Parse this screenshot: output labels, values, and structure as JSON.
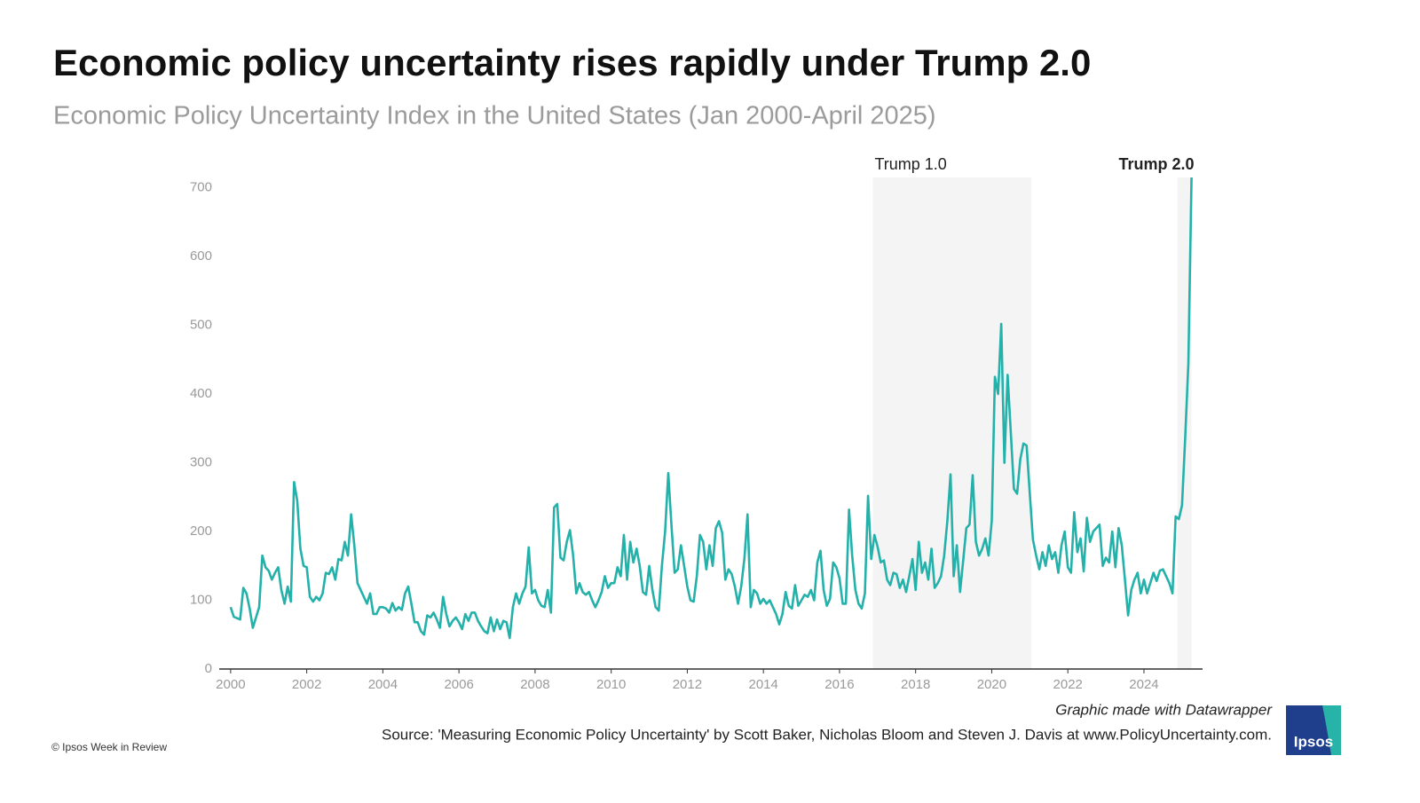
{
  "chart_data": {
    "type": "line",
    "title": "Economic policy uncertainty rises rapidly under Trump 2.0",
    "subtitle": "Economic Policy Uncertainty Index in the United States (Jan 2000-April 2025)",
    "credit": "Graphic made with Datawrapper",
    "source": "Source: 'Measuring Economic Policy Uncertainty' by Scott Baker, Nicholas Bloom and Steven J. Davis at www.PolicyUncertainty.com.",
    "copyright": "© Ipsos Week in Review",
    "logo": "Ipsos",
    "color": "#24b1aa",
    "annotations": [
      {
        "label": "Trump 1.0",
        "x0": 2016.875,
        "x1": 2021.042
      },
      {
        "label": "Trump 2.0",
        "x0": 2024.875,
        "x1": 2025.25
      }
    ],
    "xlim": [
      1999.7,
      2025.54
    ],
    "xticks": [
      2000,
      2002,
      2004,
      2006,
      2008,
      2010,
      2012,
      2014,
      2016,
      2018,
      2020,
      2022,
      2024
    ],
    "ylim": [
      0,
      715
    ],
    "yticks": [
      0,
      100,
      200,
      300,
      400,
      500,
      600,
      700
    ],
    "grid": false,
    "x": [
      2000,
      2000.083,
      2000.167,
      2000.25,
      2000.333,
      2000.417,
      2000.5,
      2000.583,
      2000.667,
      2000.75,
      2000.833,
      2000.917,
      2001,
      2001.083,
      2001.167,
      2001.25,
      2001.333,
      2001.417,
      2001.5,
      2001.583,
      2001.667,
      2001.75,
      2001.833,
      2001.917,
      2002,
      2002.083,
      2002.167,
      2002.25,
      2002.333,
      2002.417,
      2002.5,
      2002.583,
      2002.667,
      2002.75,
      2002.833,
      2002.917,
      2003,
      2003.083,
      2003.167,
      2003.25,
      2003.333,
      2003.417,
      2003.5,
      2003.583,
      2003.667,
      2003.75,
      2003.833,
      2003.917,
      2004,
      2004.083,
      2004.167,
      2004.25,
      2004.333,
      2004.417,
      2004.5,
      2004.583,
      2004.667,
      2004.75,
      2004.833,
      2004.917,
      2005,
      2005.083,
      2005.167,
      2005.25,
      2005.333,
      2005.417,
      2005.5,
      2005.583,
      2005.667,
      2005.75,
      2005.833,
      2005.917,
      2006,
      2006.083,
      2006.167,
      2006.25,
      2006.333,
      2006.417,
      2006.5,
      2006.583,
      2006.667,
      2006.75,
      2006.833,
      2006.917,
      2007,
      2007.083,
      2007.167,
      2007.25,
      2007.333,
      2007.417,
      2007.5,
      2007.583,
      2007.667,
      2007.75,
      2007.833,
      2007.917,
      2008,
      2008.083,
      2008.167,
      2008.25,
      2008.333,
      2008.417,
      2008.5,
      2008.583,
      2008.667,
      2008.75,
      2008.833,
      2008.917,
      2009,
      2009.083,
      2009.167,
      2009.25,
      2009.333,
      2009.417,
      2009.5,
      2009.583,
      2009.667,
      2009.75,
      2009.833,
      2009.917,
      2010,
      2010.083,
      2010.167,
      2010.25,
      2010.333,
      2010.417,
      2010.5,
      2010.583,
      2010.667,
      2010.75,
      2010.833,
      2010.917,
      2011,
      2011.083,
      2011.167,
      2011.25,
      2011.333,
      2011.417,
      2011.5,
      2011.583,
      2011.667,
      2011.75,
      2011.833,
      2011.917,
      2012,
      2012.083,
      2012.167,
      2012.25,
      2012.333,
      2012.417,
      2012.5,
      2012.583,
      2012.667,
      2012.75,
      2012.833,
      2012.917,
      2013,
      2013.083,
      2013.167,
      2013.25,
      2013.333,
      2013.417,
      2013.5,
      2013.583,
      2013.667,
      2013.75,
      2013.833,
      2013.917,
      2014,
      2014.083,
      2014.167,
      2014.25,
      2014.333,
      2014.417,
      2014.5,
      2014.583,
      2014.667,
      2014.75,
      2014.833,
      2014.917,
      2015,
      2015.083,
      2015.167,
      2015.25,
      2015.333,
      2015.417,
      2015.5,
      2015.583,
      2015.667,
      2015.75,
      2015.833,
      2015.917,
      2016,
      2016.083,
      2016.167,
      2016.25,
      2016.333,
      2016.417,
      2016.5,
      2016.583,
      2016.667,
      2016.75,
      2016.833,
      2016.917,
      2017,
      2017.083,
      2017.167,
      2017.25,
      2017.333,
      2017.417,
      2017.5,
      2017.583,
      2017.667,
      2017.75,
      2017.833,
      2017.917,
      2018,
      2018.083,
      2018.167,
      2018.25,
      2018.333,
      2018.417,
      2018.5,
      2018.583,
      2018.667,
      2018.75,
      2018.833,
      2018.917,
      2019,
      2019.083,
      2019.167,
      2019.25,
      2019.333,
      2019.417,
      2019.5,
      2019.583,
      2019.667,
      2019.75,
      2019.833,
      2019.917,
      2020,
      2020.083,
      2020.167,
      2020.25,
      2020.333,
      2020.417,
      2020.5,
      2020.583,
      2020.667,
      2020.75,
      2020.833,
      2020.917,
      2021,
      2021.083,
      2021.167,
      2021.25,
      2021.333,
      2021.417,
      2021.5,
      2021.583,
      2021.667,
      2021.75,
      2021.833,
      2021.917,
      2022,
      2022.083,
      2022.167,
      2022.25,
      2022.333,
      2022.417,
      2022.5,
      2022.583,
      2022.667,
      2022.75,
      2022.833,
      2022.917,
      2023,
      2023.083,
      2023.167,
      2023.25,
      2023.333,
      2023.417,
      2023.5,
      2023.583,
      2023.667,
      2023.75,
      2023.833,
      2023.917,
      2024,
      2024.083,
      2024.167,
      2024.25,
      2024.333,
      2024.417,
      2024.5,
      2024.583,
      2024.667,
      2024.75,
      2024.833,
      2024.917,
      2025,
      2025.083,
      2025.167,
      2025.25
    ],
    "values": [
      90,
      76,
      74,
      72,
      118,
      110,
      88,
      60,
      75,
      90,
      165,
      148,
      143,
      130,
      140,
      148,
      115,
      95,
      120,
      98,
      272,
      245,
      175,
      150,
      148,
      105,
      98,
      105,
      100,
      110,
      140,
      138,
      148,
      130,
      160,
      158,
      185,
      165,
      225,
      180,
      125,
      115,
      105,
      95,
      110,
      80,
      80,
      90,
      90,
      88,
      82,
      96,
      85,
      90,
      86,
      110,
      120,
      95,
      68,
      68,
      55,
      50,
      78,
      75,
      82,
      72,
      60,
      105,
      80,
      62,
      70,
      75,
      68,
      58,
      80,
      70,
      82,
      82,
      70,
      62,
      55,
      52,
      75,
      55,
      72,
      58,
      70,
      68,
      45,
      90,
      110,
      95,
      110,
      120,
      177,
      110,
      115,
      100,
      92,
      90,
      115,
      82,
      235,
      240,
      162,
      158,
      185,
      202,
      165,
      110,
      125,
      112,
      108,
      112,
      100,
      90,
      100,
      112,
      135,
      118,
      125,
      125,
      148,
      135,
      195,
      130,
      185,
      155,
      175,
      150,
      112,
      108,
      150,
      115,
      90,
      85,
      150,
      200,
      285,
      210,
      140,
      145,
      180,
      150,
      120,
      100,
      98,
      135,
      195,
      185,
      145,
      180,
      150,
      205,
      215,
      198,
      130,
      145,
      138,
      120,
      95,
      120,
      160,
      225,
      90,
      115,
      110,
      95,
      102,
      95,
      100,
      90,
      80,
      65,
      80,
      112,
      92,
      88,
      122,
      92,
      100,
      108,
      105,
      115,
      100,
      155,
      172,
      115,
      92,
      102,
      155,
      148,
      132,
      95,
      95,
      232,
      165,
      115,
      95,
      88,
      110,
      252,
      160,
      195,
      178,
      155,
      158,
      130,
      122,
      140,
      138,
      118,
      130,
      112,
      135,
      160,
      115,
      185,
      140,
      155,
      130,
      175,
      118,
      125,
      135,
      165,
      215,
      283,
      135,
      180,
      112,
      158,
      205,
      210,
      282,
      185,
      165,
      175,
      190,
      165,
      215,
      425,
      400,
      502,
      300,
      428,
      345,
      262,
      255,
      305,
      328,
      325,
      255,
      188,
      165,
      145,
      170,
      150,
      180,
      160,
      170,
      140,
      180,
      200,
      148,
      140,
      228,
      170,
      190,
      142,
      220,
      185,
      200,
      205,
      210,
      150,
      162,
      155,
      200,
      148,
      205,
      180,
      130,
      78,
      115,
      130,
      140,
      110,
      130,
      110,
      125,
      140,
      128,
      143,
      145,
      135,
      125,
      110,
      222,
      218,
      238,
      335,
      445,
      715
    ]
  }
}
